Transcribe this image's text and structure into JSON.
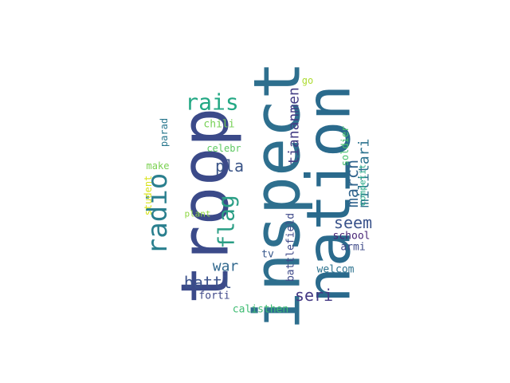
{
  "word_cloud": {
    "background": "#ffffff",
    "words": [
      {
        "text": "inspect",
        "color": "#2e6f8e"
      },
      {
        "text": "nation",
        "color": "#2a6a8c"
      },
      {
        "text": "troop",
        "color": "#3b4a89"
      },
      {
        "text": "rais",
        "color": "#23a884"
      },
      {
        "text": "radio",
        "color": "#2a7f8e"
      },
      {
        "text": "flag",
        "color": "#2a9e85"
      },
      {
        "text": "pla",
        "color": "#3b5588"
      },
      {
        "text": "war",
        "color": "#31688e"
      },
      {
        "text": "battl",
        "color": "#3b528b"
      },
      {
        "text": "seri",
        "color": "#443983"
      },
      {
        "text": "seem",
        "color": "#3a538b"
      },
      {
        "text": "march",
        "color": "#32658e"
      },
      {
        "text": "militari",
        "color": "#2c738e"
      },
      {
        "text": "tiananmen",
        "color": "#433d84"
      },
      {
        "text": "school",
        "color": "#482576"
      },
      {
        "text": "armi",
        "color": "#3e4a89"
      },
      {
        "text": "welcom",
        "color": "#2c728e"
      },
      {
        "text": "battlefield",
        "color": "#3e4989"
      },
      {
        "text": "tv",
        "color": "#38598c"
      },
      {
        "text": "forti",
        "color": "#3f4889"
      },
      {
        "text": "calisthen",
        "color": "#3fbc73"
      },
      {
        "text": "soldier",
        "color": "#4ac16d"
      },
      {
        "text": "competit",
        "color": "#22a785"
      },
      {
        "text": "go",
        "color": "#addc30"
      },
      {
        "text": "chili",
        "color": "#75d054"
      },
      {
        "text": "parad",
        "color": "#2a788e"
      },
      {
        "text": "celebr",
        "color": "#5ec962"
      },
      {
        "text": "make",
        "color": "#7ad151"
      },
      {
        "text": "student",
        "color": "#d8e219"
      },
      {
        "text": "plant",
        "color": "#8fd744"
      }
    ]
  }
}
